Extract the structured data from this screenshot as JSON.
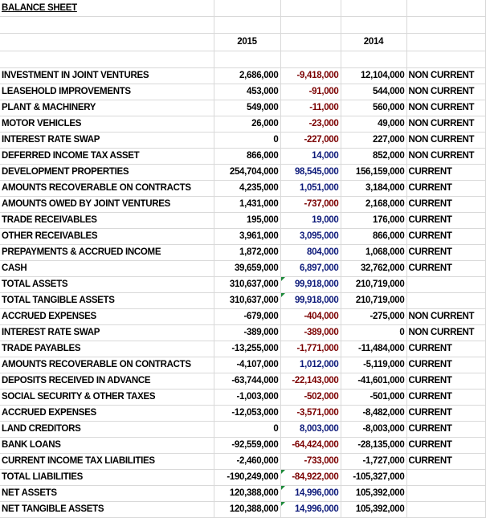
{
  "title": "BALANCE SHEET",
  "year_current": "2015",
  "year_prior": "2014",
  "colors": {
    "negative_change": "#7b0000",
    "positive_change": "#0d1a7a",
    "grid": "#d9d9d9",
    "formula_flag": "#1e8a3a"
  },
  "rows": [
    {
      "label": "INVESTMENT IN JOINT VENTURES",
      "y2015": "2,686,000",
      "change": "-9,418,000",
      "y2014": "12,104,000",
      "class": "NON CURRENT"
    },
    {
      "label": "LEASEHOLD IMPROVEMENTS",
      "y2015": "453,000",
      "change": "-91,000",
      "y2014": "544,000",
      "class": "NON CURRENT"
    },
    {
      "label": "PLANT & MACHINERY",
      "y2015": "549,000",
      "change": "-11,000",
      "y2014": "560,000",
      "class": "NON CURRENT"
    },
    {
      "label": "MOTOR VEHICLES",
      "y2015": "26,000",
      "change": "-23,000",
      "y2014": "49,000",
      "class": "NON CURRENT"
    },
    {
      "label": "INTEREST RATE SWAP",
      "y2015": "0",
      "change": "-227,000",
      "y2014": "227,000",
      "class": "NON CURRENT"
    },
    {
      "label": "DEFERRED INCOME TAX ASSET",
      "y2015": "866,000",
      "change": "14,000",
      "y2014": "852,000",
      "class": "NON CURRENT"
    },
    {
      "label": "DEVELOPMENT PROPERTIES",
      "y2015": "254,704,000",
      "change": "98,545,000",
      "y2014": "156,159,000",
      "class": "CURRENT"
    },
    {
      "label": "AMOUNTS RECOVERABLE ON CONTRACTS",
      "y2015": "4,235,000",
      "change": "1,051,000",
      "y2014": "3,184,000",
      "class": "CURRENT"
    },
    {
      "label": "AMOUNTS OWED BY JOINT VENTURES",
      "y2015": "1,431,000",
      "change": "-737,000",
      "y2014": "2,168,000",
      "class": "CURRENT"
    },
    {
      "label": "TRADE RECEIVABLES",
      "y2015": "195,000",
      "change": "19,000",
      "y2014": "176,000",
      "class": "CURRENT"
    },
    {
      "label": "OTHER RECEIVABLES",
      "y2015": "3,961,000",
      "change": "3,095,000",
      "y2014": "866,000",
      "class": "CURRENT"
    },
    {
      "label": "PREPAYMENTS & ACCRUED INCOME",
      "y2015": "1,872,000",
      "change": "804,000",
      "y2014": "1,068,000",
      "class": "CURRENT"
    },
    {
      "label": "CASH",
      "y2015": "39,659,000",
      "change": "6,897,000",
      "y2014": "32,762,000",
      "class": "CURRENT"
    },
    {
      "label": "TOTAL ASSETS",
      "y2015": "310,637,000",
      "change": "99,918,000",
      "y2014": "210,719,000",
      "class": ""
    },
    {
      "label": "TOTAL TANGIBLE ASSETS",
      "y2015": "310,637,000",
      "change": "99,918,000",
      "y2014": "210,719,000",
      "class": ""
    },
    {
      "label": "ACCRUED EXPENSES",
      "y2015": "-679,000",
      "change": "-404,000",
      "y2014": "-275,000",
      "class": "NON CURRENT"
    },
    {
      "label": "INTEREST RATE SWAP",
      "y2015": "-389,000",
      "change": "-389,000",
      "y2014": "0",
      "class": "NON CURRENT"
    },
    {
      "label": "TRADE PAYABLES",
      "y2015": "-13,255,000",
      "change": "-1,771,000",
      "y2014": "-11,484,000",
      "class": "CURRENT"
    },
    {
      "label": "AMOUNTS RECOVERABLE ON CONTRACTS",
      "y2015": "-4,107,000",
      "change": "1,012,000",
      "y2014": "-5,119,000",
      "class": "CURRENT"
    },
    {
      "label": "DEPOSITS RECEIVED IN ADVANCE",
      "y2015": "-63,744,000",
      "change": "-22,143,000",
      "y2014": "-41,601,000",
      "class": "CURRENT"
    },
    {
      "label": "SOCIAL SECURITY & OTHER TAXES",
      "y2015": "-1,003,000",
      "change": "-502,000",
      "y2014": "-501,000",
      "class": "CURRENT"
    },
    {
      "label": "ACCRUED EXPENSES",
      "y2015": "-12,053,000",
      "change": "-3,571,000",
      "y2014": "-8,482,000",
      "class": "CURRENT"
    },
    {
      "label": "LAND CREDITORS",
      "y2015": "0",
      "change": "8,003,000",
      "y2014": "-8,003,000",
      "class": "CURRENT"
    },
    {
      "label": "BANK LOANS",
      "y2015": "-92,559,000",
      "change": "-64,424,000",
      "y2014": "-28,135,000",
      "class": "CURRENT"
    },
    {
      "label": "CURRENT INCOME TAX LIABILITIES",
      "y2015": "-2,460,000",
      "change": "-733,000",
      "y2014": "-1,727,000",
      "class": "CURRENT"
    },
    {
      "label": "TOTAL LIABILITIES",
      "y2015": "-190,249,000",
      "change": "-84,922,000",
      "y2014": "-105,327,000",
      "class": ""
    },
    {
      "label": "NET ASSETS",
      "y2015": "120,388,000",
      "change": "14,996,000",
      "y2014": "105,392,000",
      "class": ""
    },
    {
      "label": "NET TANGIBLE ASSETS",
      "y2015": "120,388,000",
      "change": "14,996,000",
      "y2014": "105,392,000",
      "class": ""
    }
  ]
}
